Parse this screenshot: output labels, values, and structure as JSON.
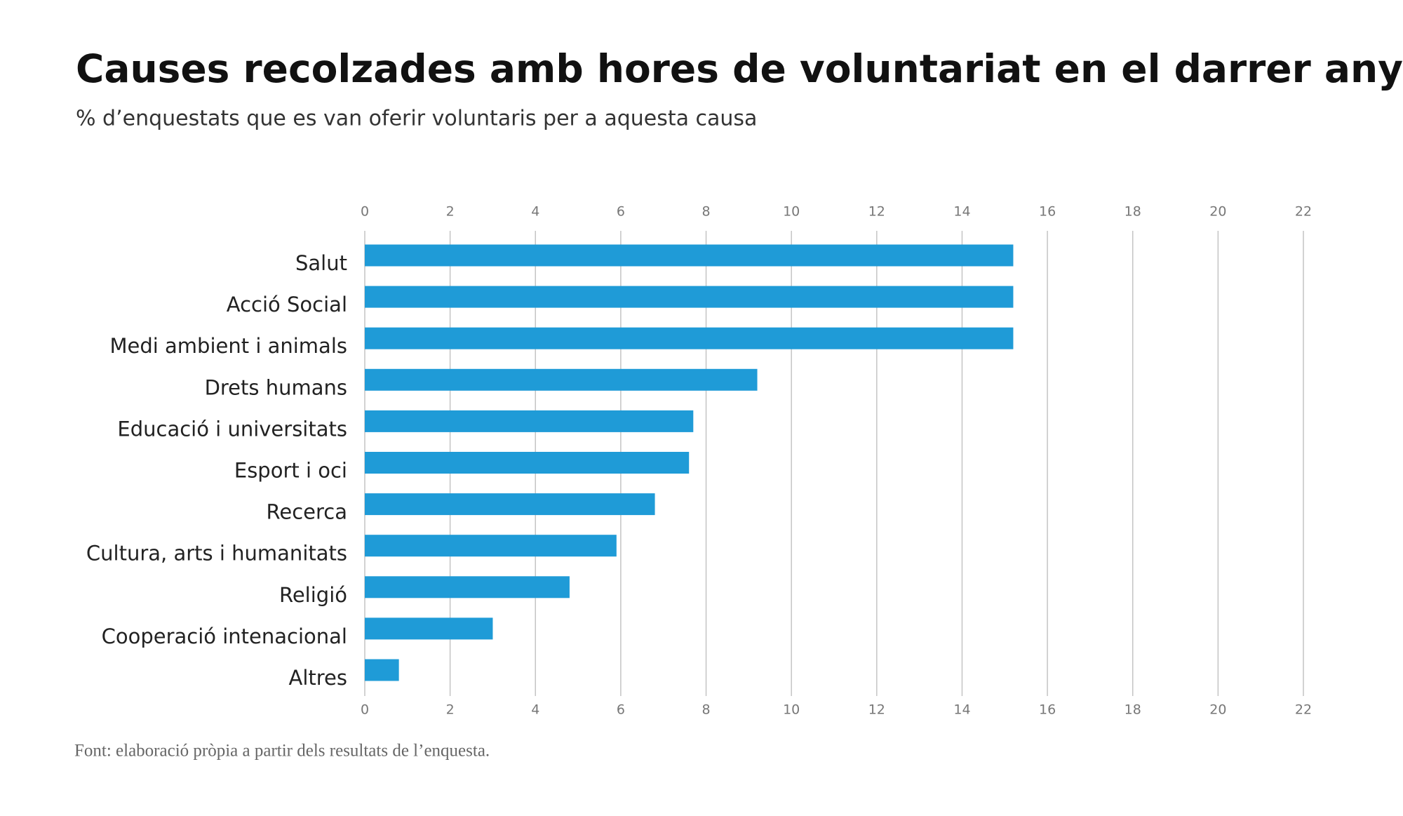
{
  "chart_data": {
    "type": "bar",
    "orientation": "horizontal",
    "title": "Causes recolzades amb hores de voluntariat en el darrer any",
    "subtitle": "% d’enquestats que es van oferir voluntaris per a aquesta causa",
    "source": "Font: elaboració pròpia a partir dels resultats de l’enquesta.",
    "categories": [
      "Salut",
      "Acció Social",
      "Medi ambient i animals",
      "Drets humans",
      "Educació i universitats",
      "Esport i oci",
      "Recerca",
      "Cultura, arts i humanitats",
      "Religió",
      "Cooperació intenacional",
      "Altres"
    ],
    "values": [
      15.2,
      15.2,
      15.2,
      9.2,
      7.7,
      7.6,
      6.8,
      5.9,
      4.8,
      3.0,
      0.8
    ],
    "color": "#1f9bd7",
    "xlim": [
      0,
      22
    ],
    "xticks": [
      0,
      2,
      4,
      6,
      8,
      10,
      12,
      14,
      16,
      18,
      20,
      22
    ],
    "grid": true
  }
}
